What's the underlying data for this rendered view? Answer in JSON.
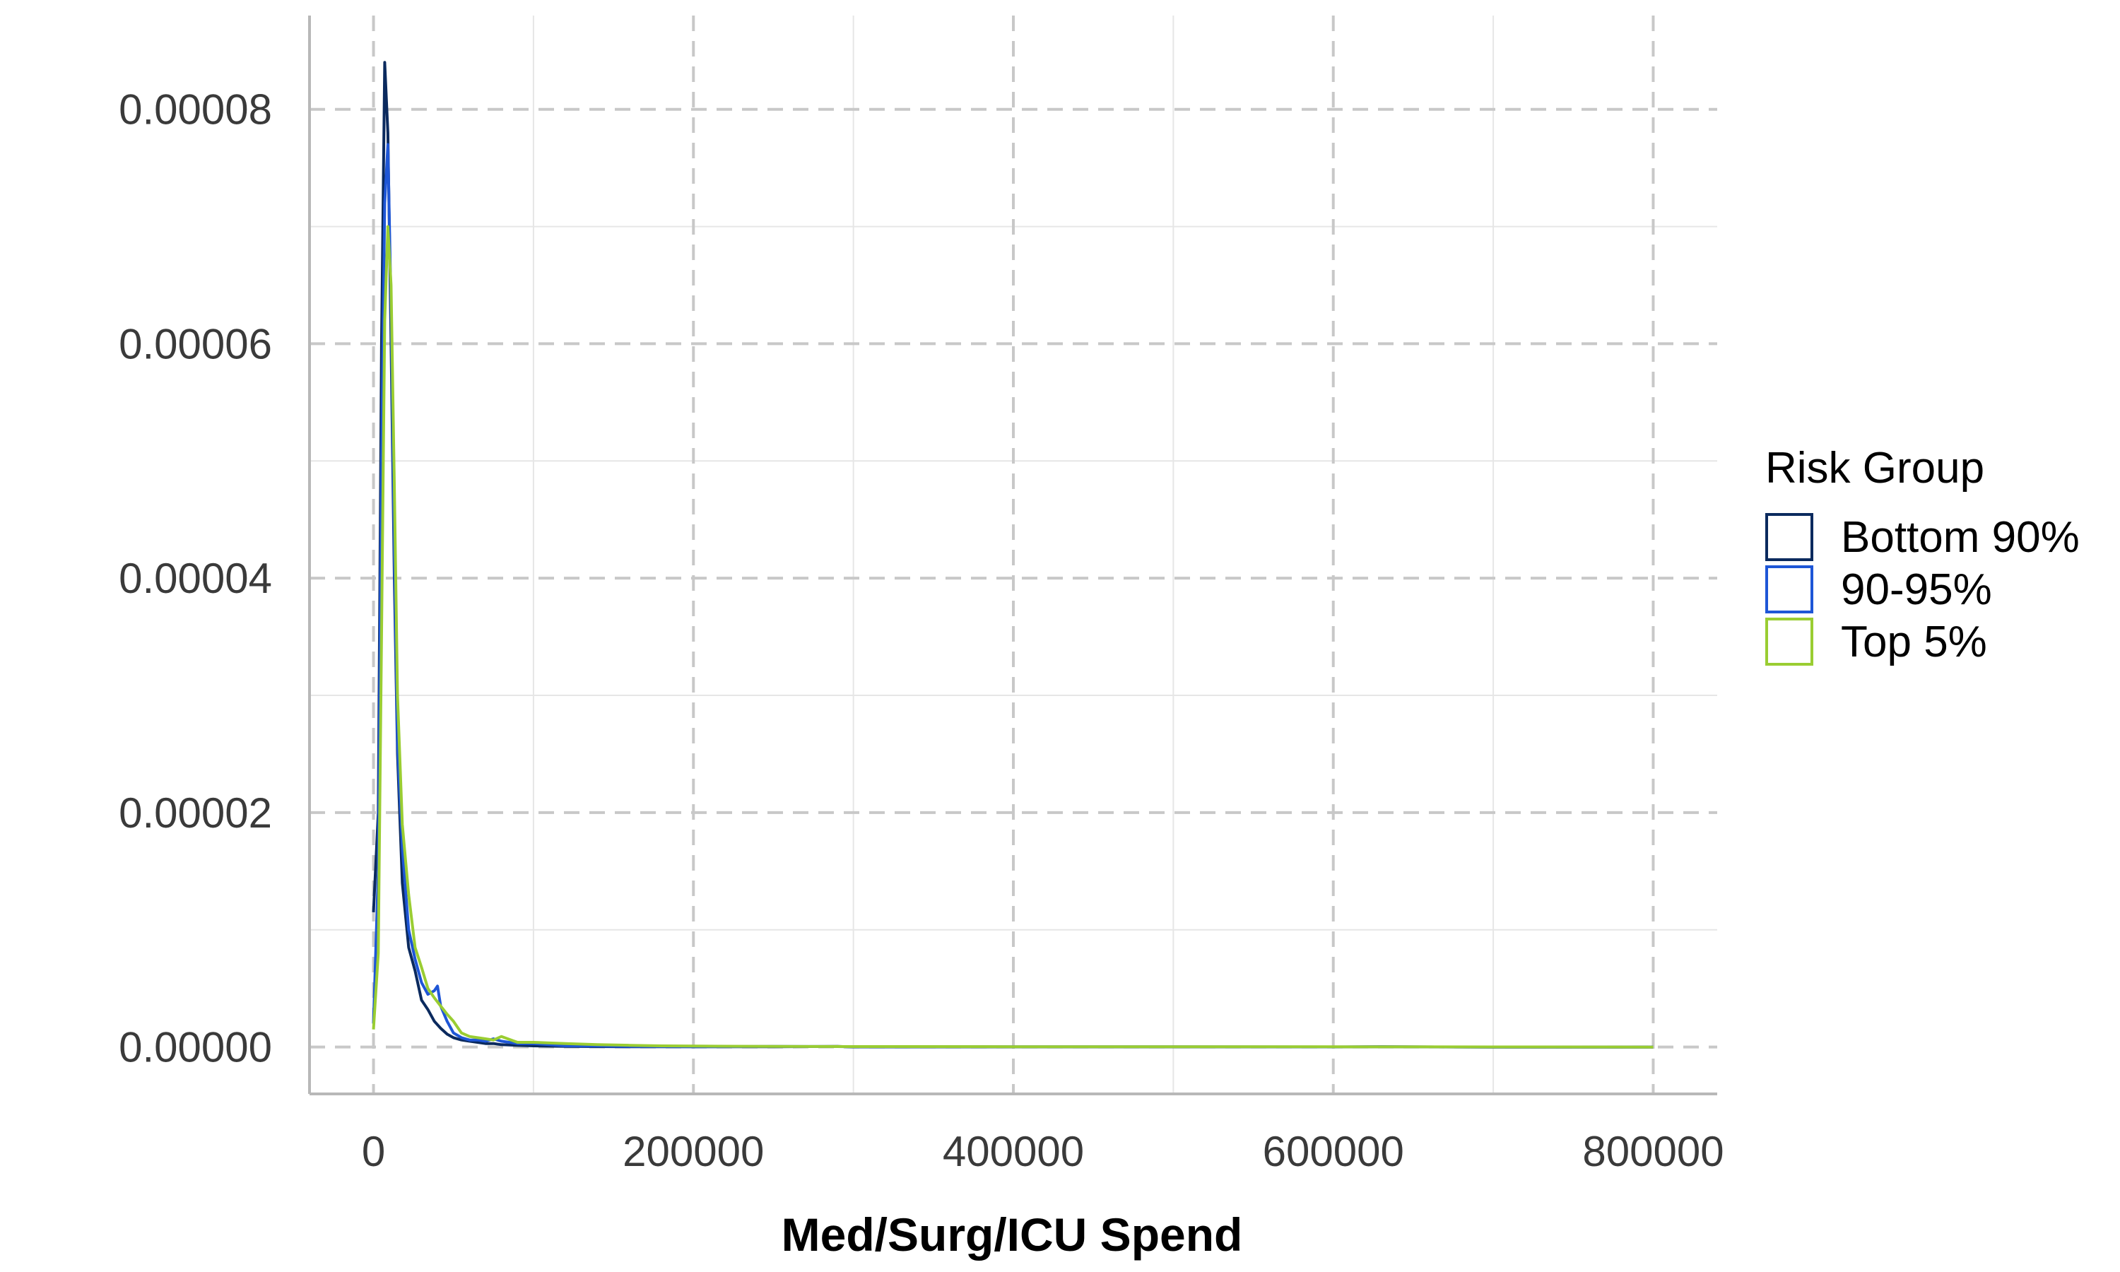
{
  "chart_data": {
    "type": "line",
    "title": "",
    "xlabel": "Med/Surg/ICU Spend",
    "ylabel": "",
    "xlim": [
      -40000,
      840000
    ],
    "ylim": [
      -4e-06,
      8.8e-05
    ],
    "x_ticks": [
      0,
      200000,
      400000,
      600000,
      800000
    ],
    "x_tick_labels": [
      "0",
      "200000",
      "400000",
      "600000",
      "800000"
    ],
    "x_minor_ticks": [
      100000,
      300000,
      500000,
      700000
    ],
    "y_ticks": [
      0,
      2e-05,
      4e-05,
      6e-05,
      8e-05
    ],
    "y_tick_labels": [
      "0.00000",
      "0.00002",
      "0.00004",
      "0.00006",
      "0.00008"
    ],
    "y_minor_ticks": [
      1e-05,
      3e-05,
      5e-05,
      7e-05
    ],
    "grid": true,
    "major_grid_style": "dashed",
    "legend": {
      "title": "Risk Group",
      "position": "right"
    },
    "series": [
      {
        "name": "Bottom 90%",
        "color": "#0b2a5e",
        "x": [
          0,
          3000,
          5000,
          7000,
          9000,
          11000,
          13000,
          15000,
          18000,
          22000,
          26000,
          30000,
          34000,
          38000,
          42000,
          46000,
          50000,
          55000,
          60000,
          65000,
          70000,
          75000,
          80000,
          90000,
          100000,
          120000,
          140000,
          160000,
          180000,
          200000,
          250000,
          290000,
          300000,
          400000,
          500000,
          600000,
          630000,
          700000,
          800000
        ],
        "y": [
          1.15e-05,
          2e-05,
          6e-05,
          8.4e-05,
          7.8e-05,
          6e-05,
          4e-05,
          2.5e-05,
          1.4e-05,
          8.5e-06,
          6.5e-06,
          4e-06,
          3.2e-06,
          2.2e-06,
          1.6e-06,
          1.1e-06,
          8e-07,
          6e-07,
          5e-07,
          4e-07,
          3e-07,
          3e-07,
          2e-07,
          1.5e-07,
          1e-07,
          6e-08,
          4e-08,
          3e-08,
          2e-08,
          2e-08,
          3e-08,
          5e-08,
          1e-08,
          1e-08,
          1e-08,
          1e-08,
          2e-08,
          0.0,
          0.0
        ]
      },
      {
        "name": "90-95%",
        "color": "#1e56d6",
        "x": [
          0,
          3000,
          5000,
          7000,
          9000,
          11000,
          13000,
          15000,
          18000,
          22000,
          26000,
          30000,
          34000,
          38000,
          40000,
          42000,
          46000,
          50000,
          55000,
          60000,
          65000,
          70000,
          75000,
          80000,
          90000,
          100000,
          110000,
          120000,
          140000,
          160000,
          180000,
          200000,
          250000,
          290000,
          300000,
          400000,
          500000,
          600000,
          630000,
          700000,
          800000
        ],
        "y": [
          2e-06,
          1.5e-05,
          5e-05,
          7.2e-05,
          7.7e-05,
          6.3e-05,
          4.2e-05,
          2.6e-05,
          1.7e-05,
          1e-05,
          7.5e-06,
          5.5e-06,
          4.5e-06,
          4.8e-06,
          5.2e-06,
          3.5e-06,
          2.2e-06,
          1.2e-06,
          8e-07,
          6e-07,
          6e-07,
          5e-07,
          7e-07,
          5e-07,
          3e-07,
          3e-07,
          2e-07,
          1e-07,
          8e-08,
          5e-08,
          4e-08,
          3e-08,
          5e-08,
          4e-08,
          2e-08,
          2e-08,
          2e-08,
          1e-08,
          3e-08,
          0.0,
          0.0
        ]
      },
      {
        "name": "Top 5%",
        "color": "#9acd32",
        "x": [
          0,
          3000,
          5000,
          7000,
          9000,
          11000,
          13000,
          15000,
          18000,
          22000,
          26000,
          30000,
          34000,
          38000,
          42000,
          46000,
          50000,
          55000,
          60000,
          65000,
          70000,
          75000,
          80000,
          90000,
          100000,
          120000,
          140000,
          160000,
          180000,
          200000,
          250000,
          300000,
          400000,
          500000,
          600000,
          700000,
          800000
        ],
        "y": [
          1.5e-06,
          8e-06,
          3.5e-05,
          6.2e-05,
          7e-05,
          6.5e-05,
          4.8e-05,
          3e-05,
          1.9e-05,
          1.3e-05,
          8.5e-06,
          6.8e-06,
          5e-06,
          4.2e-06,
          3.5e-06,
          2.8e-06,
          2.2e-06,
          1.2e-06,
          9e-07,
          8e-07,
          7e-07,
          6e-07,
          9e-07,
          4e-07,
          4e-07,
          3e-07,
          2e-07,
          1.5e-07,
          1e-07,
          8e-08,
          5e-08,
          4e-08,
          3e-08,
          2e-08,
          2e-08,
          1e-08,
          0.0
        ]
      }
    ]
  }
}
